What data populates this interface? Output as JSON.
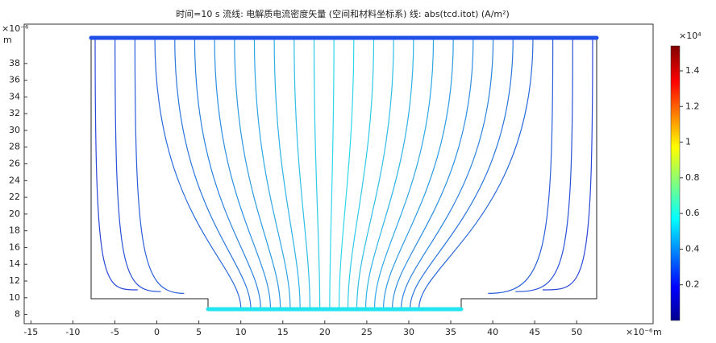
{
  "chart_data": {
    "type": "streamline",
    "title": "时间=10 s   流线: 电解质电流密度矢量  (空间和材料坐标系)   线: abs(tcd.itot) (A/m²)",
    "x_exponent": "×10⁻⁶",
    "x_unit": "m",
    "y_exponent": "×10⁻⁶",
    "y_unit": "m",
    "xlim": [
      -15.8,
      59.1
    ],
    "xticks": [
      -15,
      -10,
      -5,
      0,
      5,
      10,
      15,
      20,
      25,
      30,
      35,
      40,
      45,
      50
    ],
    "ylim": [
      6.9,
      42.7
    ],
    "yticks": [
      8,
      10,
      12,
      14,
      16,
      18,
      20,
      22,
      24,
      26,
      28,
      30,
      32,
      34,
      36,
      38
    ],
    "colorbar": {
      "exponent": "×10⁴",
      "clim": [
        0,
        1.54
      ],
      "ticks": [
        0.2,
        0.4,
        0.6,
        0.8,
        1,
        1.2,
        1.4
      ]
    }
  }
}
